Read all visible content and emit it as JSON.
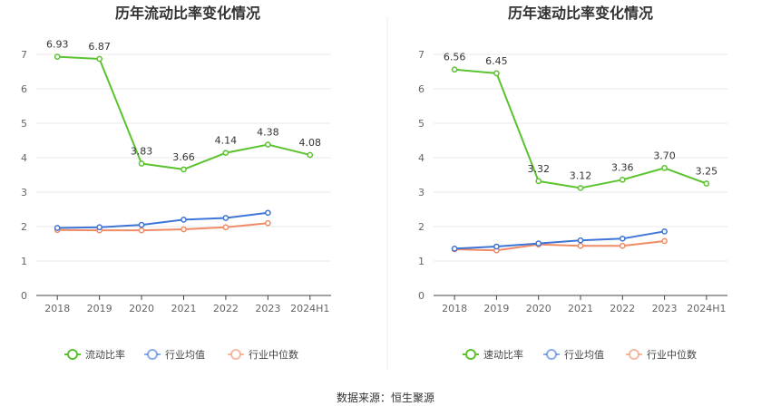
{
  "source_text": "数据来源：恒生聚源",
  "colors": {
    "primary": "#5ac32e",
    "average": "#3e75d6",
    "median": "#ef8c66",
    "grid": "#e8e8e8",
    "axis": "#444444",
    "divider": "#eeeeee"
  },
  "chart_data": [
    {
      "type": "line",
      "title": "历年流动比率变化情况",
      "categories": [
        "2018",
        "2019",
        "2020",
        "2021",
        "2022",
        "2023",
        "2024H1"
      ],
      "ylim": [
        0,
        7
      ],
      "yticks": [
        "0",
        "1",
        "2",
        "3",
        "4",
        "5",
        "6",
        "7"
      ],
      "grid": true,
      "legend_position": "bottom",
      "series": [
        {
          "name": "流动比率",
          "color": "#5ac32e",
          "values": [
            6.93,
            6.87,
            3.83,
            3.66,
            4.14,
            4.38,
            4.08
          ],
          "labels": [
            "6.93",
            "6.87",
            "3.83",
            "3.66",
            "4.14",
            "4.38",
            "4.08"
          ]
        },
        {
          "name": "行业均值",
          "color": "#3e75d6",
          "values": [
            1.96,
            1.98,
            2.05,
            2.2,
            2.25,
            2.4,
            null
          ],
          "labels": []
        },
        {
          "name": "行业中位数",
          "color": "#ef8c66",
          "values": [
            1.9,
            1.89,
            1.89,
            1.92,
            1.98,
            2.1,
            null
          ],
          "labels": []
        }
      ]
    },
    {
      "type": "line",
      "title": "历年速动比率变化情况",
      "categories": [
        "2018",
        "2019",
        "2020",
        "2021",
        "2022",
        "2023",
        "2024H1"
      ],
      "ylim": [
        0,
        7
      ],
      "yticks": [
        "0",
        "1",
        "2",
        "3",
        "4",
        "5",
        "6",
        "7"
      ],
      "grid": true,
      "legend_position": "bottom",
      "series": [
        {
          "name": "速动比率",
          "color": "#5ac32e",
          "values": [
            6.56,
            6.45,
            3.32,
            3.12,
            3.36,
            3.7,
            3.25
          ],
          "labels": [
            "6.56",
            "6.45",
            "3.32",
            "3.12",
            "3.36",
            "3.70",
            "3.25"
          ]
        },
        {
          "name": "行业均值",
          "color": "#3e75d6",
          "values": [
            1.36,
            1.42,
            1.51,
            1.6,
            1.65,
            1.86,
            null
          ],
          "labels": []
        },
        {
          "name": "行业中位数",
          "color": "#ef8c66",
          "values": [
            1.34,
            1.31,
            1.48,
            1.44,
            1.44,
            1.58,
            null
          ],
          "labels": []
        }
      ]
    }
  ]
}
